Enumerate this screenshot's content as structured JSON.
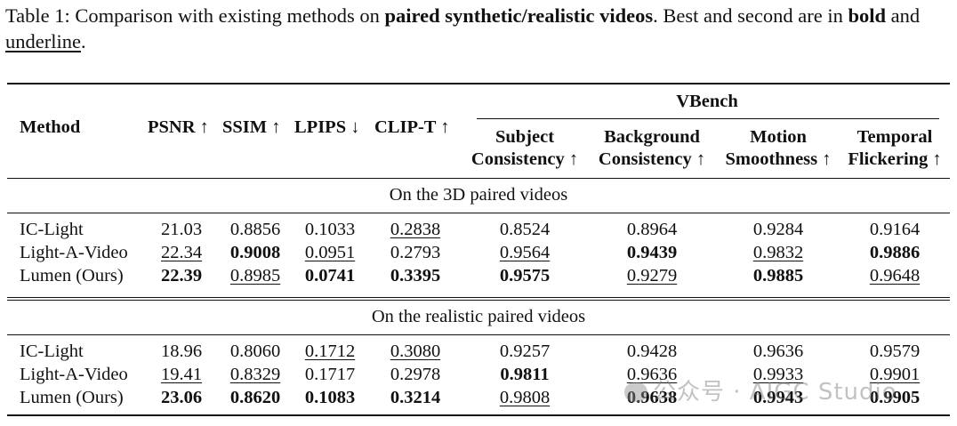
{
  "caption": {
    "prefix": "Table 1: Comparison with existing methods on ",
    "bold_phrase": "paired synthetic/realistic videos",
    "mid": ". Best and second are in ",
    "bold_word": "bold",
    "and": " and ",
    "underline_word": "underline",
    "end": "."
  },
  "header": {
    "method": "Method",
    "psnr": "PSNR ↑",
    "ssim": "SSIM ↑",
    "lpips": "LPIPS ↓",
    "clipt": "CLIP-T ↑",
    "vbench": "VBench",
    "subject_1": "Subject",
    "subject_2": "Consistency ↑",
    "background_1": "Background",
    "background_2": "Consistency ↑",
    "motion_1": "Motion",
    "motion_2": "Smoothness ↑",
    "temporal_1": "Temporal",
    "temporal_2": "Flickering ↑"
  },
  "sections": [
    {
      "title": "On the 3D paired videos",
      "rows": [
        {
          "method": "IC-Light",
          "cells": [
            {
              "v": "21.03",
              "s": ""
            },
            {
              "v": "0.8856",
              "s": ""
            },
            {
              "v": "0.1033",
              "s": ""
            },
            {
              "v": "0.2838",
              "s": "ul"
            },
            {
              "v": "0.8524",
              "s": ""
            },
            {
              "v": "0.8964",
              "s": ""
            },
            {
              "v": "0.9284",
              "s": ""
            },
            {
              "v": "0.9164",
              "s": ""
            }
          ]
        },
        {
          "method": "Light-A-Video",
          "cells": [
            {
              "v": "22.34",
              "s": "ul"
            },
            {
              "v": "0.9008",
              "s": "bold"
            },
            {
              "v": "0.0951",
              "s": "ul"
            },
            {
              "v": "0.2793",
              "s": ""
            },
            {
              "v": "0.9564",
              "s": "ul"
            },
            {
              "v": "0.9439",
              "s": "bold"
            },
            {
              "v": "0.9832",
              "s": "ul"
            },
            {
              "v": "0.9886",
              "s": "bold"
            }
          ]
        },
        {
          "method": "Lumen (Ours)",
          "cells": [
            {
              "v": "22.39",
              "s": "bold"
            },
            {
              "v": "0.8985",
              "s": "ul"
            },
            {
              "v": "0.0741",
              "s": "bold"
            },
            {
              "v": "0.3395",
              "s": "bold"
            },
            {
              "v": "0.9575",
              "s": "bold"
            },
            {
              "v": "0.9279",
              "s": "ul"
            },
            {
              "v": "0.9885",
              "s": "bold"
            },
            {
              "v": "0.9648",
              "s": "ul"
            }
          ]
        }
      ]
    },
    {
      "title": "On the realistic paired videos",
      "rows": [
        {
          "method": "IC-Light",
          "cells": [
            {
              "v": "18.96",
              "s": ""
            },
            {
              "v": "0.8060",
              "s": ""
            },
            {
              "v": "0.1712",
              "s": "ul"
            },
            {
              "v": "0.3080",
              "s": "ul"
            },
            {
              "v": "0.9257",
              "s": ""
            },
            {
              "v": "0.9428",
              "s": ""
            },
            {
              "v": "0.9636",
              "s": ""
            },
            {
              "v": "0.9579",
              "s": ""
            }
          ]
        },
        {
          "method": "Light-A-Video",
          "cells": [
            {
              "v": "19.41",
              "s": "ul"
            },
            {
              "v": "0.8329",
              "s": "ul"
            },
            {
              "v": "0.1717",
              "s": ""
            },
            {
              "v": "0.2978",
              "s": ""
            },
            {
              "v": "0.9811",
              "s": "bold"
            },
            {
              "v": "0.9636",
              "s": "ul"
            },
            {
              "v": "0.9933",
              "s": "ul"
            },
            {
              "v": "0.9901",
              "s": "ul"
            }
          ]
        },
        {
          "method": "Lumen (Ours)",
          "cells": [
            {
              "v": "23.06",
              "s": "bold"
            },
            {
              "v": "0.8620",
              "s": "bold"
            },
            {
              "v": "0.1083",
              "s": "bold"
            },
            {
              "v": "0.3214",
              "s": "bold"
            },
            {
              "v": "0.9808",
              "s": "ul"
            },
            {
              "v": "0.9638",
              "s": "bold"
            },
            {
              "v": "0.9943",
              "s": "bold"
            },
            {
              "v": "0.9905",
              "s": "bold"
            }
          ]
        }
      ]
    }
  ],
  "watermark": "公众号 · AIGC Studio"
}
